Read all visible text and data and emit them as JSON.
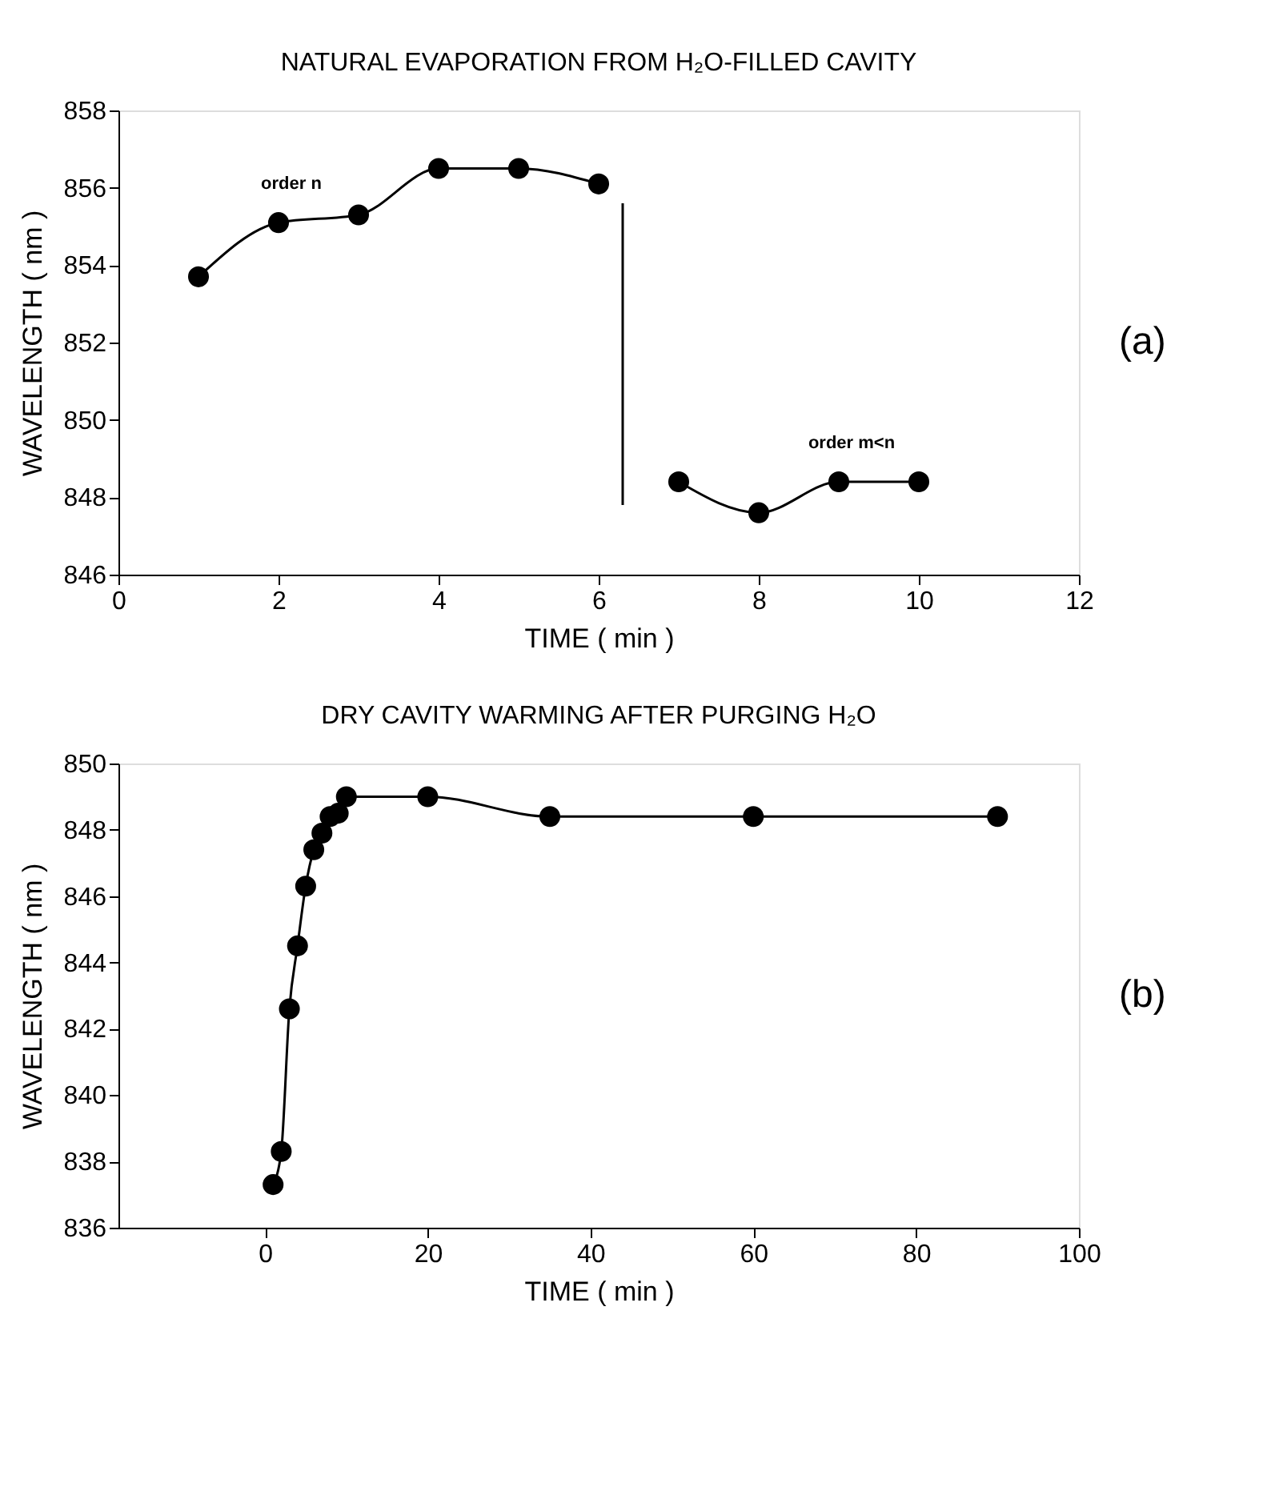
{
  "chart_data": [
    {
      "type": "line",
      "title": "NATURAL EVAPORATION FROM H₂O-FILLED CAVITY",
      "xlabel": "TIME ( min )",
      "ylabel": "WAVELENGTH ( nm )",
      "xlim": [
        0,
        12
      ],
      "xticks": [
        0,
        2,
        4,
        6,
        8,
        10,
        12
      ],
      "ylim": [
        846,
        858
      ],
      "yticks": [
        846,
        848,
        850,
        852,
        854,
        856,
        858
      ],
      "grid": false,
      "series": [
        {
          "color": "#000000",
          "marker": "circle",
          "x": [
            1,
            2,
            3,
            4,
            5,
            6
          ],
          "values": [
            853.7,
            855.1,
            855.3,
            856.5,
            856.5,
            856.1
          ]
        },
        {
          "color": "#000000",
          "marker": "circle",
          "x": [
            7,
            8,
            9,
            10
          ],
          "values": [
            848.4,
            847.6,
            848.4,
            848.4
          ]
        },
        {
          "color": "#000000",
          "marker": "none",
          "x": [
            6.3,
            6.3
          ],
          "values": [
            855.6,
            847.8
          ]
        }
      ],
      "annotations": [
        {
          "text": "order n",
          "x": 2,
          "y": 855.1
        },
        {
          "text": "order m<n",
          "x": 9,
          "y": 848.4
        },
        "(a)"
      ]
    },
    {
      "type": "line",
      "title": "DRY CAVITY WARMING AFTER PURGING H₂O",
      "xlabel": "TIME ( min )",
      "ylabel": "WAVELENGTH ( nm )",
      "xlim": [
        -18,
        100
      ],
      "xticks": [
        0,
        20,
        40,
        60,
        80,
        100
      ],
      "ylim": [
        836,
        850
      ],
      "yticks": [
        836,
        838,
        840,
        842,
        844,
        846,
        848,
        850
      ],
      "grid": false,
      "series": [
        {
          "color": "#000000",
          "marker": "circle",
          "x": [
            1,
            2,
            3,
            4,
            5,
            6,
            7,
            8,
            9,
            10,
            20,
            35,
            60,
            90
          ],
          "values": [
            837.3,
            838.3,
            842.6,
            844.5,
            846.3,
            847.4,
            847.9,
            848.4,
            848.5,
            849.0,
            849.0,
            848.4,
            848.4,
            848.4
          ]
        }
      ],
      "annotations": [
        "(b)"
      ]
    }
  ]
}
